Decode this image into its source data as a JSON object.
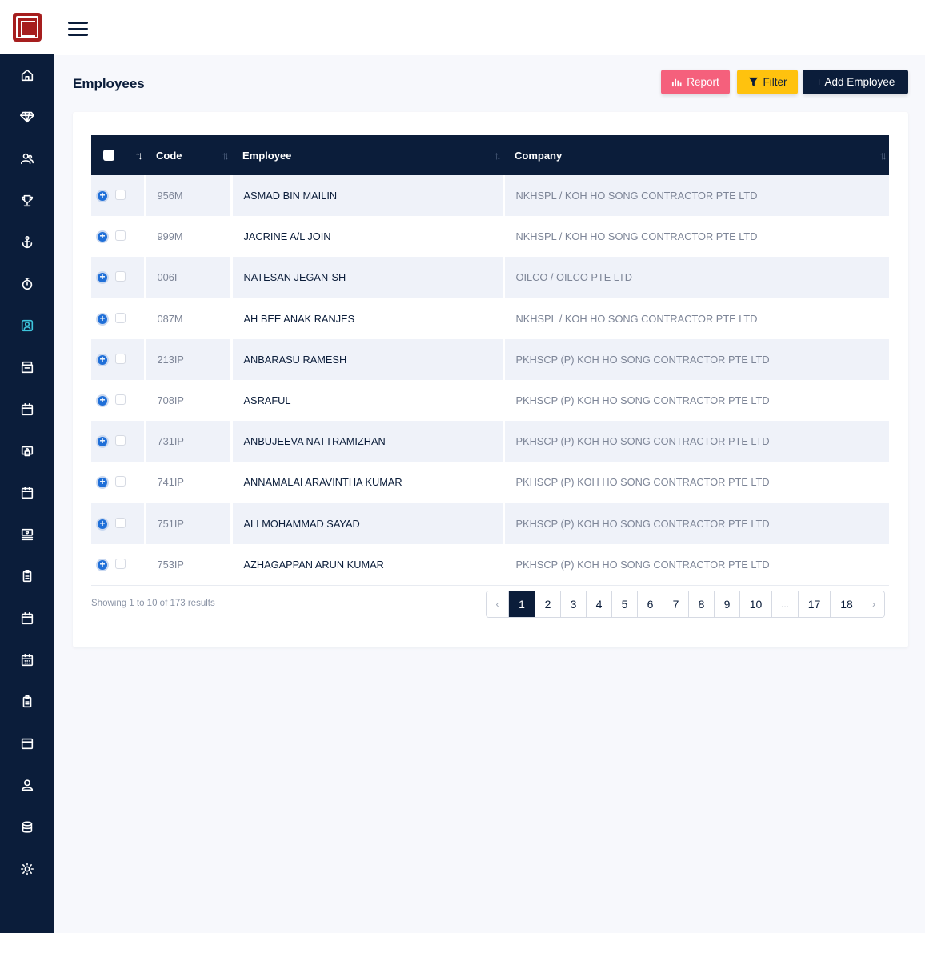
{
  "header": {
    "menu_icon": "hamburger-icon",
    "logo": "company-seal-logo"
  },
  "sidebar": {
    "items": [
      {
        "icon": "home-icon"
      },
      {
        "icon": "diamond-icon"
      },
      {
        "icon": "users-icon"
      },
      {
        "icon": "trophy-icon"
      },
      {
        "icon": "anchor-icon"
      },
      {
        "icon": "stopwatch-icon"
      },
      {
        "icon": "contact-card-icon",
        "active": true
      },
      {
        "icon": "box-tray-icon"
      },
      {
        "icon": "calendar-icon"
      },
      {
        "icon": "printer-icon"
      },
      {
        "icon": "calendar-icon"
      },
      {
        "icon": "server-icon"
      },
      {
        "icon": "clipboard-icon"
      },
      {
        "icon": "calendar-icon"
      },
      {
        "icon": "calendar-grid-icon"
      },
      {
        "icon": "clipboard-icon"
      },
      {
        "icon": "window-icon"
      },
      {
        "icon": "user-icon"
      },
      {
        "icon": "database-icon"
      },
      {
        "icon": "gear-icon"
      }
    ]
  },
  "page": {
    "title": "Employees",
    "buttons": {
      "report": "Report",
      "filter": "Filter",
      "add": "+ Add Employee"
    }
  },
  "table": {
    "columns": {
      "code": "Code",
      "employee": "Employee",
      "company": "Company"
    },
    "rows": [
      {
        "code": "956M",
        "employee": "ASMAD BIN MAILIN",
        "company": "NKHSPL / KOH HO SONG CONTRACTOR PTE LTD"
      },
      {
        "code": "999M",
        "employee": "JACRINE A/L JOIN",
        "company": "NKHSPL / KOH HO SONG CONTRACTOR PTE LTD"
      },
      {
        "code": "006I",
        "employee": "NATESAN JEGAN-SH",
        "company": "OILCO / OILCO PTE LTD"
      },
      {
        "code": "087M",
        "employee": "AH BEE ANAK RANJES",
        "company": "NKHSPL / KOH HO SONG CONTRACTOR PTE LTD"
      },
      {
        "code": "213IP",
        "employee": "ANBARASU RAMESH",
        "company": "PKHSCP (P) KOH HO SONG CONTRACTOR PTE LTD"
      },
      {
        "code": "708IP",
        "employee": "ASRAFUL",
        "company": "PKHSCP (P) KOH HO SONG CONTRACTOR PTE LTD"
      },
      {
        "code": "731IP",
        "employee": "ANBUJEEVA NATTRAMIZHAN",
        "company": "PKHSCP (P) KOH HO SONG CONTRACTOR PTE LTD"
      },
      {
        "code": "741IP",
        "employee": "ANNAMALAI ARAVINTHA KUMAR",
        "company": "PKHSCP (P) KOH HO SONG CONTRACTOR PTE LTD"
      },
      {
        "code": "751IP",
        "employee": "ALI MOHAMMAD SAYAD",
        "company": "PKHSCP (P) KOH HO SONG CONTRACTOR PTE LTD"
      },
      {
        "code": "753IP",
        "employee": "AZHAGAPPAN ARUN KUMAR",
        "company": "PKHSCP (P) KOH HO SONG CONTRACTOR PTE LTD"
      }
    ]
  },
  "footer": {
    "showing": "Showing 1 to 10 of 173 results",
    "pages": [
      "‹",
      "1",
      "2",
      "3",
      "4",
      "5",
      "6",
      "7",
      "8",
      "9",
      "10",
      "...",
      "17",
      "18",
      "›"
    ],
    "current_page": "1"
  },
  "colors": {
    "navy": "#0b1d3a",
    "report": "#f5607c",
    "filter": "#ffc20e",
    "active_icon": "#3ec5dd"
  }
}
